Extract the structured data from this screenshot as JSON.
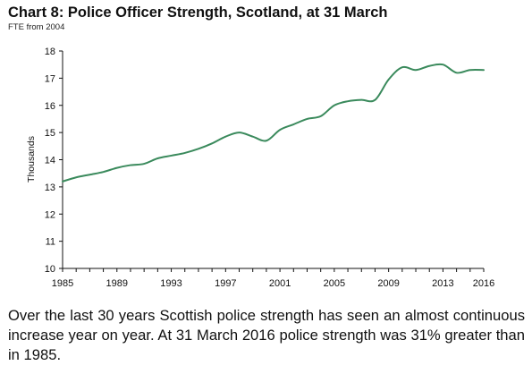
{
  "chart": {
    "title": "Chart 8: Police Officer Strength, Scotland, at 31 March",
    "subtitle": "FTE from 2004"
  },
  "caption": "Over the last 30 years Scottish police strength has seen an almost continuous increase year on year. At 31 March 2016 police strength was 31% greater than in 1985.",
  "chart_data": {
    "type": "line",
    "title": "Chart 8: Police Officer Strength, Scotland, at 31 March",
    "subtitle": "FTE from 2004",
    "xlabel": "",
    "ylabel": "Thousands",
    "xlim": [
      1985,
      2016
    ],
    "ylim": [
      10,
      18
    ],
    "x_ticks": [
      1985,
      1989,
      1993,
      1997,
      2001,
      2005,
      2009,
      2013,
      2016
    ],
    "y_ticks": [
      10,
      11,
      12,
      13,
      14,
      15,
      16,
      17,
      18
    ],
    "grid": false,
    "legend": "none",
    "line_color": "#3a8a5c",
    "series": [
      {
        "x": [
          1985,
          1986,
          1987,
          1988,
          1989,
          1990,
          1991,
          1992,
          1993,
          1994,
          1995,
          1996,
          1997,
          1998,
          1999,
          2000,
          2001,
          2002,
          2003,
          2004,
          2005,
          2006,
          2007,
          2008,
          2009,
          2010,
          2011,
          2012,
          2013,
          2014,
          2015,
          2016
        ],
        "values": [
          13.2,
          13.35,
          13.45,
          13.55,
          13.7,
          13.8,
          13.85,
          14.05,
          14.15,
          14.25,
          14.4,
          14.6,
          14.85,
          15.0,
          14.85,
          14.7,
          15.1,
          15.3,
          15.5,
          15.6,
          16.0,
          16.15,
          16.2,
          16.2,
          16.95,
          17.4,
          17.3,
          17.45,
          17.5,
          17.2,
          17.3,
          17.3
        ]
      }
    ]
  }
}
